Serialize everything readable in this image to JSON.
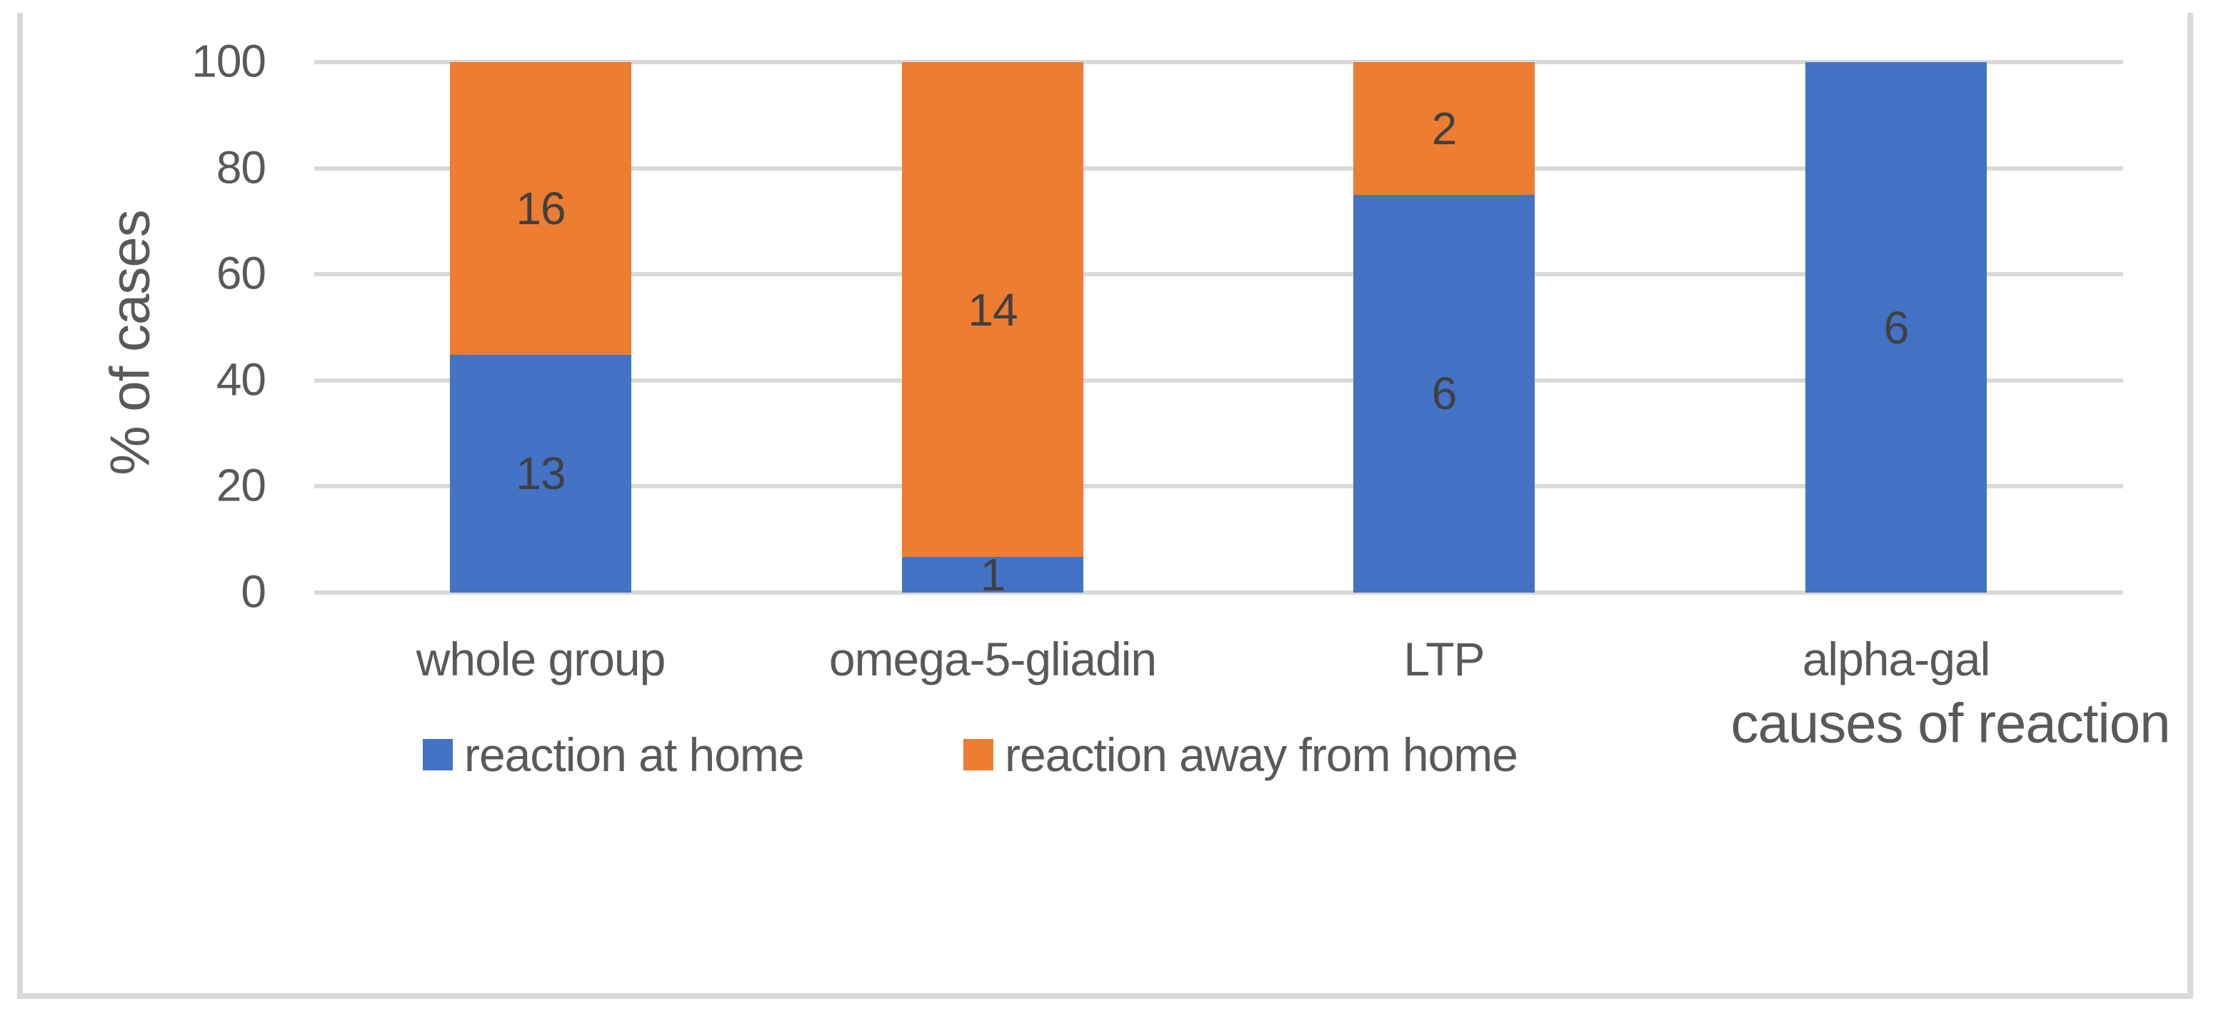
{
  "chart_data": {
    "type": "bar",
    "stacking": "100-percent",
    "title": "",
    "categories": [
      "whole group",
      "omega-5-gliadin",
      "LTP",
      "alpha-gal"
    ],
    "series": [
      {
        "name": "reaction at home",
        "color": "#4472C4",
        "values": [
          13,
          1,
          6,
          6
        ]
      },
      {
        "name": "reaction away from home",
        "color": "#ED7D31",
        "values": [
          16,
          14,
          2,
          0
        ]
      }
    ],
    "xlabel": "causes of reaction",
    "ylabel": "% of cases",
    "ylim": [
      0,
      100
    ],
    "y_ticks": [
      0,
      20,
      40,
      60,
      80,
      100
    ],
    "grid": true,
    "legend_position": "bottom",
    "data_label_style": "raw counts centered inside segments"
  },
  "legend": {
    "items": [
      {
        "label": "reaction at home",
        "color": "#4472C4"
      },
      {
        "label": "reaction away from home",
        "color": "#ED7D31"
      }
    ]
  },
  "colors": {
    "series_home": "#4472C4",
    "series_away": "#ED7D31",
    "gridline": "#D9D9D9",
    "frame_border": "#D9D9D9",
    "axis_text": "#595959",
    "data_label_text": "#404040",
    "background": "#FFFFFF"
  }
}
